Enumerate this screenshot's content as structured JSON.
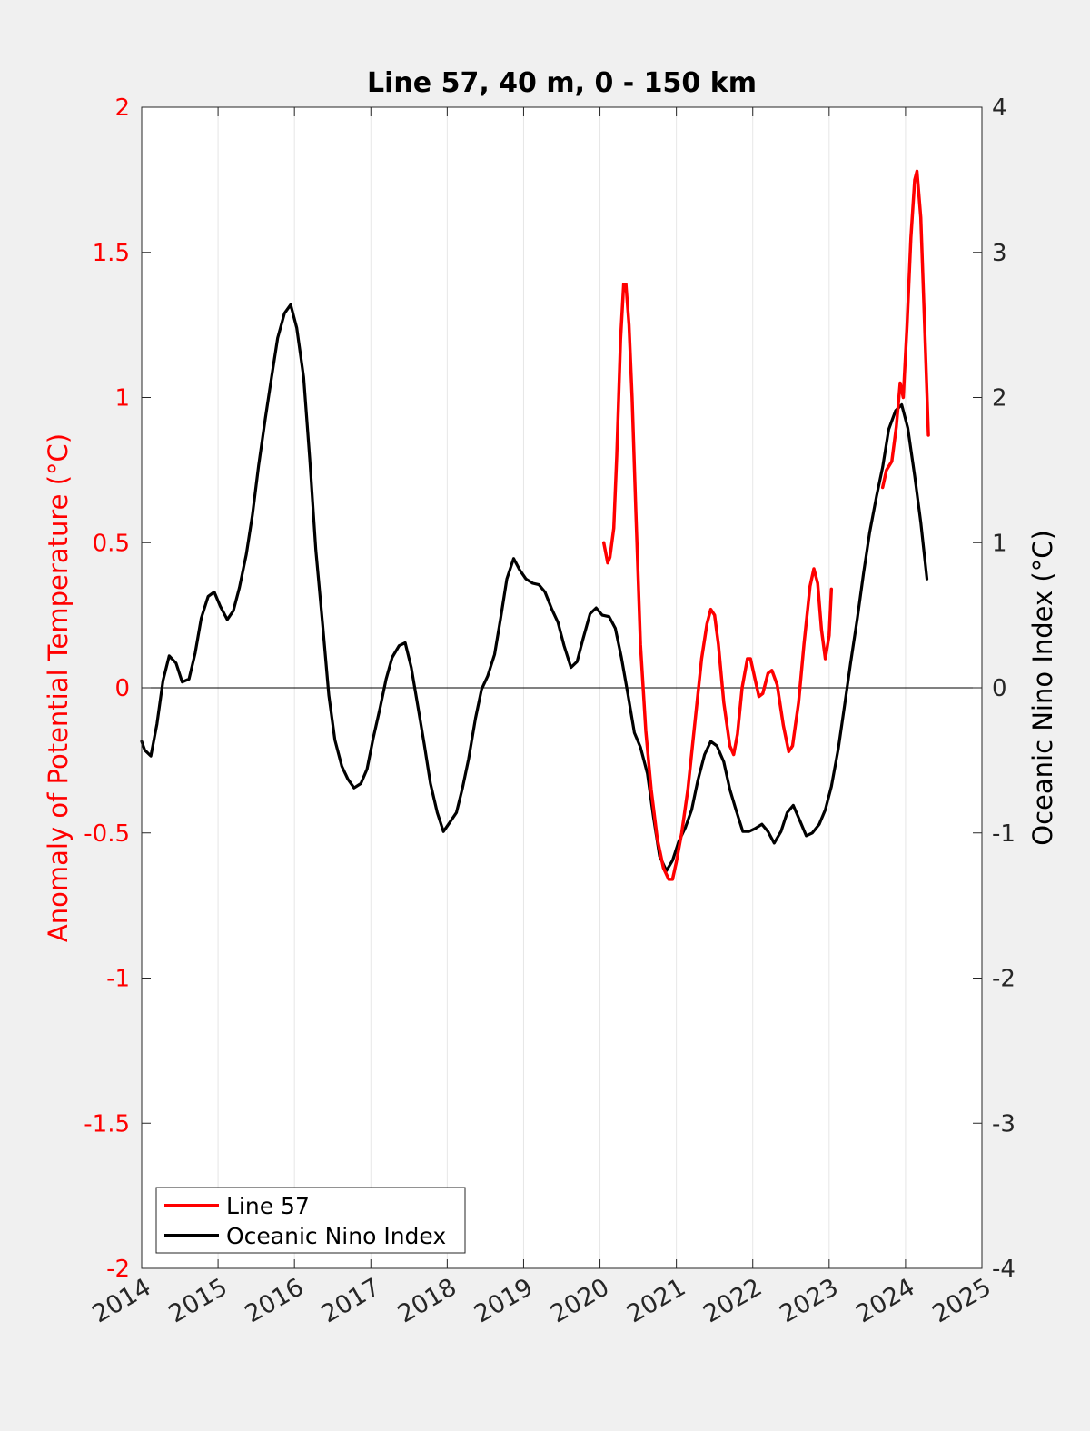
{
  "chart_data": {
    "type": "line",
    "title": "Line 57, 40 m, 0 - 150 km",
    "xlim": [
      2014,
      2025
    ],
    "x_ticks": [
      "2014",
      "2015",
      "2016",
      "2017",
      "2018",
      "2019",
      "2020",
      "2021",
      "2022",
      "2023",
      "2024",
      "2025"
    ],
    "ylabel_left": "Anomaly of Potential Temperature (°C)",
    "ylim_left": [
      -2,
      2
    ],
    "y_ticks_left": [
      "2",
      "1.5",
      "1",
      "0.5",
      "0",
      "-0.5",
      "-1",
      "-1.5",
      "-2"
    ],
    "ylabel_right": "Oceanic Nino Index (°C)",
    "ylim_right": [
      -4,
      4
    ],
    "y_ticks_right": [
      "4",
      "3",
      "2",
      "1",
      "0",
      "-1",
      "-2",
      "-3",
      "-4"
    ],
    "grid": "vertical lines at x ticks",
    "zero_line": true,
    "legend_position": "bottom-left",
    "series": [
      {
        "name": "Line 57",
        "axis": "left",
        "color": "#ff0000",
        "segments": [
          [
            [
              2020.05,
              0.5
            ],
            [
              2020.1,
              0.43
            ],
            [
              2020.13,
              0.45
            ],
            [
              2020.18,
              0.55
            ],
            [
              2020.22,
              0.8
            ],
            [
              2020.27,
              1.2
            ],
            [
              2020.31,
              1.39
            ],
            [
              2020.34,
              1.39
            ],
            [
              2020.38,
              1.25
            ],
            [
              2020.42,
              1.0
            ],
            [
              2020.47,
              0.6
            ],
            [
              2020.53,
              0.15
            ],
            [
              2020.6,
              -0.15
            ],
            [
              2020.67,
              -0.35
            ],
            [
              2020.75,
              -0.52
            ],
            [
              2020.83,
              -0.62
            ],
            [
              2020.9,
              -0.66
            ],
            [
              2020.95,
              -0.66
            ],
            [
              2021.0,
              -0.6
            ],
            [
              2021.07,
              -0.5
            ],
            [
              2021.15,
              -0.35
            ],
            [
              2021.25,
              -0.1
            ],
            [
              2021.33,
              0.1
            ],
            [
              2021.4,
              0.22
            ],
            [
              2021.45,
              0.27
            ],
            [
              2021.5,
              0.25
            ],
            [
              2021.55,
              0.15
            ],
            [
              2021.62,
              -0.05
            ],
            [
              2021.7,
              -0.2
            ],
            [
              2021.75,
              -0.23
            ],
            [
              2021.8,
              -0.16
            ],
            [
              2021.86,
              0.0
            ],
            [
              2021.93,
              0.1
            ],
            [
              2021.97,
              0.1
            ],
            [
              2022.03,
              0.03
            ],
            [
              2022.08,
              -0.03
            ],
            [
              2022.13,
              -0.02
            ],
            [
              2022.2,
              0.05
            ],
            [
              2022.25,
              0.06
            ],
            [
              2022.32,
              0.01
            ],
            [
              2022.4,
              -0.13
            ],
            [
              2022.47,
              -0.22
            ],
            [
              2022.52,
              -0.2
            ],
            [
              2022.6,
              -0.05
            ],
            [
              2022.67,
              0.15
            ],
            [
              2022.75,
              0.35
            ],
            [
              2022.8,
              0.41
            ],
            [
              2022.85,
              0.36
            ],
            [
              2022.9,
              0.2
            ],
            [
              2022.95,
              0.1
            ],
            [
              2023.0,
              0.18
            ],
            [
              2023.03,
              0.34
            ]
          ],
          [
            [
              2023.7,
              0.69
            ],
            [
              2023.75,
              0.75
            ],
            [
              2023.82,
              0.78
            ],
            [
              2023.88,
              0.9
            ],
            [
              2023.93,
              1.05
            ],
            [
              2023.97,
              1.0
            ],
            [
              2024.02,
              1.25
            ],
            [
              2024.07,
              1.55
            ],
            [
              2024.12,
              1.75
            ],
            [
              2024.15,
              1.78
            ],
            [
              2024.2,
              1.62
            ],
            [
              2024.25,
              1.25
            ],
            [
              2024.3,
              0.87
            ]
          ]
        ]
      },
      {
        "name": "Oceanic Nino Index",
        "axis": "right",
        "color": "#000000",
        "points": [
          [
            2014.0,
            -0.37
          ],
          [
            2014.04,
            -0.43
          ],
          [
            2014.12,
            -0.47
          ],
          [
            2014.2,
            -0.25
          ],
          [
            2014.28,
            0.05
          ],
          [
            2014.36,
            0.22
          ],
          [
            2014.45,
            0.17
          ],
          [
            2014.53,
            0.04
          ],
          [
            2014.62,
            0.06
          ],
          [
            2014.7,
            0.24
          ],
          [
            2014.78,
            0.48
          ],
          [
            2014.87,
            0.63
          ],
          [
            2014.95,
            0.66
          ],
          [
            2015.03,
            0.56
          ],
          [
            2015.12,
            0.47
          ],
          [
            2015.2,
            0.53
          ],
          [
            2015.28,
            0.69
          ],
          [
            2015.37,
            0.92
          ],
          [
            2015.45,
            1.19
          ],
          [
            2015.53,
            1.53
          ],
          [
            2015.62,
            1.86
          ],
          [
            2015.7,
            2.14
          ],
          [
            2015.78,
            2.41
          ],
          [
            2015.87,
            2.58
          ],
          [
            2015.95,
            2.64
          ],
          [
            2016.03,
            2.48
          ],
          [
            2016.12,
            2.14
          ],
          [
            2016.2,
            1.58
          ],
          [
            2016.28,
            0.95
          ],
          [
            2016.37,
            0.43
          ],
          [
            2016.45,
            -0.05
          ],
          [
            2016.53,
            -0.36
          ],
          [
            2016.62,
            -0.54
          ],
          [
            2016.7,
            -0.63
          ],
          [
            2016.78,
            -0.69
          ],
          [
            2016.87,
            -0.66
          ],
          [
            2016.95,
            -0.56
          ],
          [
            2017.03,
            -0.35
          ],
          [
            2017.12,
            -0.14
          ],
          [
            2017.2,
            0.06
          ],
          [
            2017.28,
            0.21
          ],
          [
            2017.37,
            0.29
          ],
          [
            2017.45,
            0.31
          ],
          [
            2017.53,
            0.14
          ],
          [
            2017.62,
            -0.14
          ],
          [
            2017.7,
            -0.39
          ],
          [
            2017.78,
            -0.66
          ],
          [
            2017.87,
            -0.86
          ],
          [
            2017.95,
            -0.99
          ],
          [
            2018.03,
            -0.93
          ],
          [
            2018.12,
            -0.86
          ],
          [
            2018.2,
            -0.69
          ],
          [
            2018.28,
            -0.49
          ],
          [
            2018.37,
            -0.21
          ],
          [
            2018.45,
            -0.01
          ],
          [
            2018.53,
            0.08
          ],
          [
            2018.62,
            0.23
          ],
          [
            2018.7,
            0.48
          ],
          [
            2018.78,
            0.75
          ],
          [
            2018.87,
            0.89
          ],
          [
            2018.95,
            0.81
          ],
          [
            2019.03,
            0.75
          ],
          [
            2019.12,
            0.72
          ],
          [
            2019.2,
            0.71
          ],
          [
            2019.28,
            0.66
          ],
          [
            2019.37,
            0.54
          ],
          [
            2019.45,
            0.45
          ],
          [
            2019.53,
            0.29
          ],
          [
            2019.62,
            0.14
          ],
          [
            2019.7,
            0.18
          ],
          [
            2019.78,
            0.34
          ],
          [
            2019.87,
            0.51
          ],
          [
            2019.95,
            0.55
          ],
          [
            2020.03,
            0.5
          ],
          [
            2020.12,
            0.49
          ],
          [
            2020.2,
            0.41
          ],
          [
            2020.28,
            0.21
          ],
          [
            2020.37,
            -0.06
          ],
          [
            2020.45,
            -0.31
          ],
          [
            2020.53,
            -0.41
          ],
          [
            2020.62,
            -0.59
          ],
          [
            2020.7,
            -0.89
          ],
          [
            2020.78,
            -1.16
          ],
          [
            2020.87,
            -1.26
          ],
          [
            2020.95,
            -1.19
          ],
          [
            2021.03,
            -1.06
          ],
          [
            2021.12,
            -0.96
          ],
          [
            2021.2,
            -0.84
          ],
          [
            2021.28,
            -0.64
          ],
          [
            2021.37,
            -0.46
          ],
          [
            2021.45,
            -0.37
          ],
          [
            2021.53,
            -0.4
          ],
          [
            2021.62,
            -0.51
          ],
          [
            2021.7,
            -0.7
          ],
          [
            2021.78,
            -0.84
          ],
          [
            2021.87,
            -0.99
          ],
          [
            2021.95,
            -0.99
          ],
          [
            2022.03,
            -0.97
          ],
          [
            2022.12,
            -0.94
          ],
          [
            2022.2,
            -0.99
          ],
          [
            2022.28,
            -1.07
          ],
          [
            2022.37,
            -0.99
          ],
          [
            2022.45,
            -0.86
          ],
          [
            2022.53,
            -0.81
          ],
          [
            2022.62,
            -0.92
          ],
          [
            2022.7,
            -1.02
          ],
          [
            2022.78,
            -1.0
          ],
          [
            2022.87,
            -0.94
          ],
          [
            2022.95,
            -0.84
          ],
          [
            2023.03,
            -0.68
          ],
          [
            2023.12,
            -0.42
          ],
          [
            2023.2,
            -0.13
          ],
          [
            2023.28,
            0.17
          ],
          [
            2023.37,
            0.48
          ],
          [
            2023.45,
            0.79
          ],
          [
            2023.53,
            1.07
          ],
          [
            2023.62,
            1.32
          ],
          [
            2023.7,
            1.52
          ],
          [
            2023.78,
            1.78
          ],
          [
            2023.87,
            1.91
          ],
          [
            2023.95,
            1.95
          ],
          [
            2024.03,
            1.79
          ],
          [
            2024.12,
            1.46
          ],
          [
            2024.2,
            1.14
          ],
          [
            2024.28,
            0.75
          ]
        ]
      }
    ]
  }
}
